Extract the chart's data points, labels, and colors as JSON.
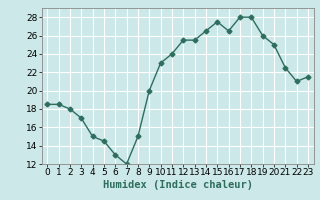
{
  "x": [
    0,
    1,
    2,
    3,
    4,
    5,
    6,
    7,
    8,
    9,
    10,
    11,
    12,
    13,
    14,
    15,
    16,
    17,
    18,
    19,
    20,
    21,
    22,
    23
  ],
  "y": [
    18.5,
    18.5,
    18.0,
    17.0,
    15.0,
    14.5,
    13.0,
    12.0,
    15.0,
    20.0,
    23.0,
    24.0,
    25.5,
    25.5,
    26.5,
    27.5,
    26.5,
    28.0,
    28.0,
    26.0,
    25.0,
    22.5,
    21.0,
    21.5
  ],
  "line_color": "#2e6e5e",
  "marker": "D",
  "markersize": 2.5,
  "bg_color": "#cce8e8",
  "grid_color": "#ffffff",
  "xlabel": "Humidex (Indice chaleur)",
  "ylim": [
    12,
    29
  ],
  "xlim": [
    -0.5,
    23.5
  ],
  "yticks": [
    12,
    14,
    16,
    18,
    20,
    22,
    24,
    26,
    28
  ],
  "xticks": [
    0,
    1,
    2,
    3,
    4,
    5,
    6,
    7,
    8,
    9,
    10,
    11,
    12,
    13,
    14,
    15,
    16,
    17,
    18,
    19,
    20,
    21,
    22,
    23
  ],
  "xlabel_fontsize": 7.5,
  "tick_fontsize": 6.5,
  "spine_color": "#888888"
}
